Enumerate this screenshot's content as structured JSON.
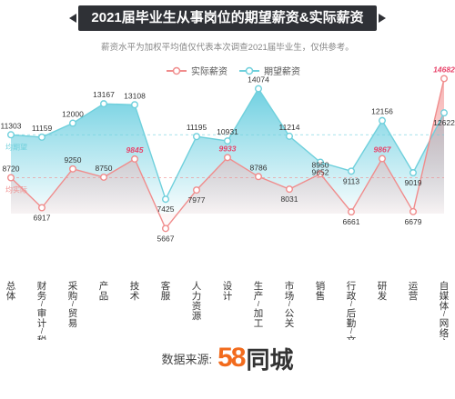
{
  "title": "2021届毕业生从事岗位的期望薪资&实际薪资",
  "subtitle": "薪资水平为加权平均值仅代表本次调查2021届毕业生，仅供参考。",
  "footer": {
    "label": "数据来源:",
    "logo_digits": "58",
    "logo_name": "同城"
  },
  "colors": {
    "actual": "#f08c8c",
    "expected": "#6fd0dc",
    "actual_fill": "#f4a9a9",
    "expected_fill": "#67cfe0",
    "highlight": "#e8436a"
  },
  "chart_data": {
    "type": "line",
    "legend_position": "top-center",
    "grid": false,
    "categories": [
      "总体",
      "财务/审计/税务",
      "采购/贸易",
      "产品",
      "技术",
      "客服",
      "人力资源",
      "设计",
      "生产/加工",
      "市场/公关",
      "销售",
      "行政/后勤/文秘",
      "研发",
      "运营",
      "自媒体/网络主播"
    ],
    "series": [
      {
        "name": "实际薪资",
        "values": [
          8720,
          6917,
          9250,
          8750,
          9845,
          5667,
          7977,
          9933,
          8786,
          8031,
          8950,
          6661,
          9867,
          6679,
          14682
        ]
      },
      {
        "name": "期望薪资",
        "values": [
          11303,
          11159,
          12000,
          13167,
          13108,
          7425,
          11195,
          10931,
          14074,
          11214,
          9652,
          9113,
          12156,
          9019,
          12622
        ]
      }
    ],
    "highlight_labels": [
      "9845",
      "9933",
      "9867",
      "14682"
    ],
    "reference_lines": [
      {
        "label": "均期望",
        "value": 11303
      },
      {
        "label": "均实际",
        "value": 8720
      }
    ],
    "ylim": [
      4000,
      16000
    ]
  }
}
